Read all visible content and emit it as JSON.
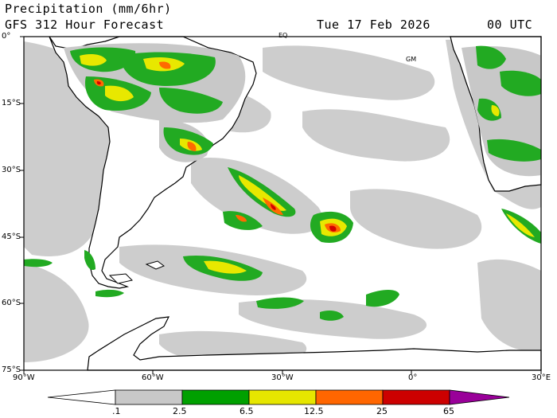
{
  "header": {
    "product": "Precipitation (mm/6hr)",
    "model_run": "GFS 312 Hour Forecast",
    "valid_date": "Tue 17 Feb 2026",
    "valid_time": "00 UTC"
  },
  "map": {
    "region": "South America / South Atlantic",
    "lon_range": [
      -90,
      30
    ],
    "lat_range": [
      -75,
      0
    ],
    "lat_labels": [
      "0°",
      "15°S",
      "30°S",
      "45°S",
      "60°S",
      "75°S"
    ],
    "lon_labels": [
      "90°W",
      "60°W",
      "30°W",
      "0°",
      "30°E"
    ],
    "notes": [
      "EQ",
      "GM"
    ]
  },
  "legend": {
    "labels": [
      ".1",
      "2.5",
      "6.5",
      "12.5",
      "25",
      "65"
    ],
    "colors": [
      "#ffffff",
      "#c8c8c8",
      "#00a000",
      "#e6e600",
      "#ff6600",
      "#cc0000",
      "#990099"
    ]
  },
  "colors": {
    "light_precip": "#c8c8c8",
    "moderate": "#22aa22",
    "heavy": "#e8e800",
    "very_heavy": "#ff6a00",
    "extreme": "#d40000",
    "coastline": "#000000"
  }
}
